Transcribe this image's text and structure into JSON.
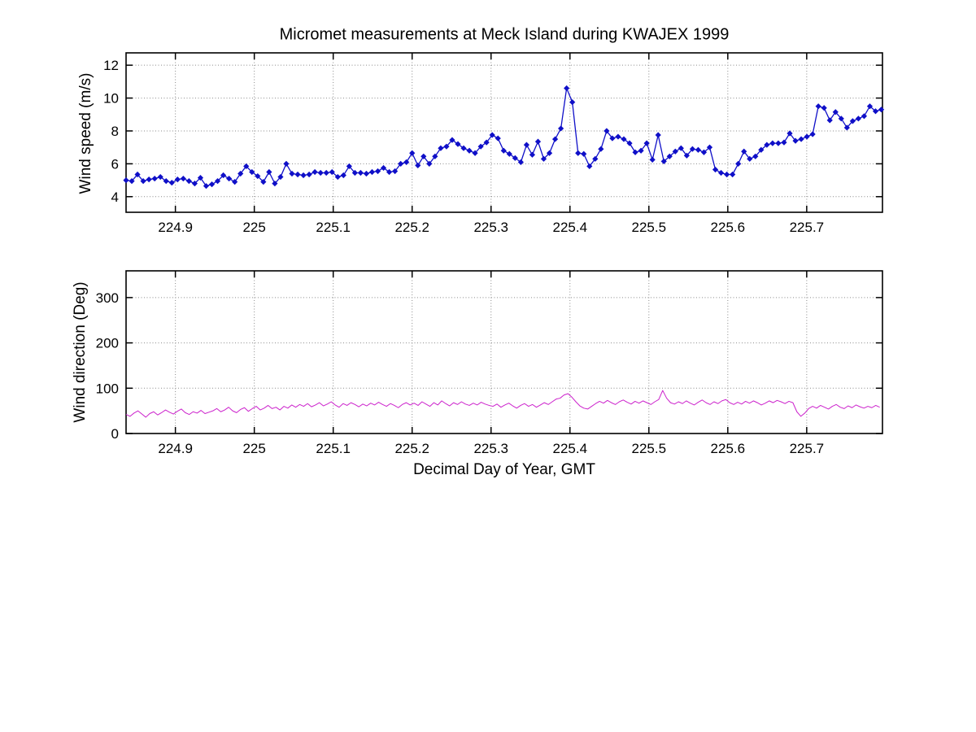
{
  "figure": {
    "title": "Micromet measurements at Meck Island during KWAJEX 1999",
    "background": "#ffffff",
    "axis_color": "#000000",
    "grid_color": "#8a8a8a"
  },
  "chart_data": [
    {
      "type": "line",
      "title": "Micromet measurements at Meck Island during KWAJEX 1999",
      "xlabel": "",
      "ylabel": "Wind speed (m/s)",
      "xlim": [
        224.8375,
        225.796
      ],
      "ylim": [
        3.05,
        12.75
      ],
      "xticks": [
        224.9,
        225.0,
        225.1,
        225.2,
        225.3,
        225.4,
        225.5,
        225.6,
        225.7
      ],
      "xtick_labels": [
        "224.9",
        "225",
        "225.1",
        "225.2",
        "225.3",
        "225.4",
        "225.5",
        "225.6",
        "225.7"
      ],
      "yticks": [
        4,
        6,
        8,
        10,
        12
      ],
      "ytick_labels": [
        "4",
        "6",
        "8",
        "10",
        "12"
      ],
      "grid": "dotted",
      "legend": "none",
      "series": [
        {
          "name": "wind-speed",
          "color": "#0f0fc8",
          "marker": "diamond",
          "line_width": 1.3,
          "x_start": 224.8375,
          "x_step": 0.00725,
          "values": [
            5.0,
            4.95,
            5.35,
            4.95,
            5.05,
            5.1,
            5.2,
            4.95,
            4.85,
            5.05,
            5.1,
            4.95,
            4.8,
            5.15,
            4.65,
            4.75,
            4.95,
            5.3,
            5.1,
            4.9,
            5.4,
            5.85,
            5.5,
            5.25,
            4.9,
            5.5,
            4.8,
            5.2,
            6.0,
            5.4,
            5.35,
            5.3,
            5.35,
            5.5,
            5.45,
            5.45,
            5.5,
            5.2,
            5.3,
            5.85,
            5.45,
            5.45,
            5.4,
            5.5,
            5.55,
            5.75,
            5.5,
            5.55,
            6.0,
            6.1,
            6.65,
            5.9,
            6.45,
            6.0,
            6.45,
            6.95,
            7.05,
            7.45,
            7.2,
            6.95,
            6.8,
            6.65,
            7.05,
            7.3,
            7.75,
            7.55,
            6.8,
            6.6,
            6.35,
            6.1,
            7.15,
            6.55,
            7.35,
            6.3,
            6.65,
            7.5,
            8.15,
            10.6,
            9.75,
            6.65,
            6.6,
            5.85,
            6.3,
            6.9,
            8.0,
            7.55,
            7.65,
            7.5,
            7.25,
            6.7,
            6.8,
            7.25,
            6.25,
            7.75,
            6.15,
            6.45,
            6.75,
            6.95,
            6.5,
            6.9,
            6.85,
            6.7,
            7.0,
            5.65,
            5.45,
            5.35,
            5.35,
            6.0,
            6.75,
            6.3,
            6.45,
            6.85,
            7.15,
            7.25,
            7.25,
            7.3,
            7.85,
            7.4,
            7.5,
            7.65,
            7.8,
            9.5,
            9.4,
            8.65,
            9.15,
            8.75,
            8.2,
            8.6,
            8.75,
            8.9,
            9.5,
            9.2,
            9.3
          ]
        }
      ]
    },
    {
      "type": "line",
      "title": "",
      "xlabel": "Decimal Day of Year, GMT",
      "ylabel": "Wind direction (Deg)",
      "xlim": [
        224.8375,
        225.796
      ],
      "ylim": [
        0,
        359
      ],
      "xticks": [
        224.9,
        225.0,
        225.1,
        225.2,
        225.3,
        225.4,
        225.5,
        225.6,
        225.7
      ],
      "xtick_labels": [
        "224.9",
        "225",
        "225.1",
        "225.2",
        "225.3",
        "225.4",
        "225.5",
        "225.6",
        "225.7"
      ],
      "yticks": [
        0,
        100,
        200,
        300
      ],
      "ytick_labels": [
        "0",
        "100",
        "200",
        "300"
      ],
      "grid": "dotted",
      "legend": "none",
      "series": [
        {
          "name": "wind-direction",
          "color": "#cc22cc",
          "marker": "none",
          "line_width": 1,
          "x_start": 224.8375,
          "x_step": 0.005,
          "values": [
            42,
            38,
            45,
            50,
            43,
            36,
            44,
            48,
            41,
            46,
            52,
            47,
            43,
            49,
            54,
            46,
            42,
            48,
            45,
            51,
            44,
            47,
            50,
            55,
            48,
            52,
            58,
            50,
            46,
            53,
            57,
            49,
            55,
            60,
            52,
            56,
            62,
            55,
            58,
            52,
            60,
            56,
            63,
            58,
            64,
            60,
            66,
            59,
            63,
            68,
            61,
            65,
            70,
            63,
            58,
            66,
            62,
            68,
            64,
            59,
            65,
            61,
            67,
            63,
            69,
            64,
            60,
            66,
            62,
            57,
            64,
            68,
            63,
            67,
            62,
            70,
            65,
            60,
            68,
            63,
            72,
            66,
            61,
            68,
            64,
            70,
            65,
            62,
            67,
            63,
            69,
            65,
            62,
            60,
            65,
            58,
            63,
            67,
            61,
            56,
            62,
            66,
            60,
            64,
            58,
            63,
            68,
            64,
            70,
            76,
            78,
            85,
            88,
            80,
            70,
            61,
            56,
            54,
            60,
            66,
            71,
            67,
            73,
            68,
            64,
            70,
            74,
            69,
            65,
            71,
            67,
            72,
            68,
            64,
            70,
            75,
            95,
            78,
            68,
            65,
            70,
            66,
            72,
            67,
            63,
            69,
            74,
            68,
            64,
            70,
            66,
            72,
            75,
            68,
            64,
            69,
            65,
            71,
            67,
            72,
            68,
            63,
            67,
            72,
            68,
            73,
            70,
            66,
            71,
            68,
            48,
            38,
            45,
            55,
            60,
            56,
            62,
            58,
            54,
            60,
            64,
            58,
            55,
            61,
            57,
            63,
            59,
            56,
            60,
            57,
            62,
            58
          ]
        }
      ]
    }
  ]
}
